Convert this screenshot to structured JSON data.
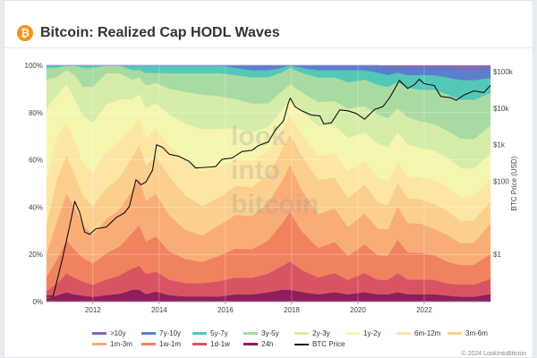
{
  "header": {
    "title": "Bitcoin: Realized Cap HODL Waves",
    "logo_glyph": "₿",
    "logo_color": "#f7931a"
  },
  "watermark": [
    "look",
    "into",
    "bitcoin"
  ],
  "footer": {
    "text": "© 2024 LookIntoBitcoin"
  },
  "chart_data": {
    "type": "area",
    "title": "Bitcoin: Realized Cap HODL Waves",
    "x_ticks": [
      "2012",
      "2014",
      "2016",
      "2018",
      "2020",
      "2022"
    ],
    "y_left_ticks": [
      "0%",
      "20%",
      "40%",
      "60%",
      "80%",
      "100%"
    ],
    "y_right_ticks": [
      "$1",
      "$100",
      "$1k",
      "$10k",
      "$100k"
    ],
    "ylabel_right": "BTC Price (USD)",
    "xlim": [
      2010.6,
      2024.0
    ],
    "ylim": [
      0,
      100
    ],
    "y_right_scale": "log",
    "y_right_range": [
      0.05,
      150000
    ],
    "grid": true,
    "legend_position": "bottom",
    "stack_order": [
      "24h",
      "1d-1w",
      "1w-1m",
      "1m-3m",
      "3m-6m",
      "6m-12m",
      "1y-2y",
      "2y-3y",
      "3y-5y",
      "5y-7y",
      "7y-10y",
      ">10y"
    ],
    "series": [
      {
        "name": ">10y",
        "color": "#8467b5",
        "kind": "band"
      },
      {
        "name": "7y-10y",
        "color": "#5b7fce",
        "kind": "band"
      },
      {
        "name": "5y-7y",
        "color": "#53c8b8",
        "kind": "band"
      },
      {
        "name": "3y-5y",
        "color": "#a8dba2",
        "kind": "band"
      },
      {
        "name": "2y-3y",
        "color": "#d6eca9",
        "kind": "band"
      },
      {
        "name": "1y-2y",
        "color": "#f4f6b0",
        "kind": "band"
      },
      {
        "name": "6m-12m",
        "color": "#fde6a4",
        "kind": "band"
      },
      {
        "name": "3m-6m",
        "color": "#fbcf8c",
        "kind": "band"
      },
      {
        "name": "1m-3m",
        "color": "#f8ad77",
        "kind": "band"
      },
      {
        "name": "1w-1m",
        "color": "#f1825f",
        "kind": "band"
      },
      {
        "name": "1d-1w",
        "color": "#d95463",
        "kind": "band"
      },
      {
        "name": "24h",
        "color": "#8e1f5c",
        "kind": "band"
      },
      {
        "name": "BTC Price",
        "color": "#111111",
        "kind": "line"
      }
    ],
    "bands_x": [
      2010.6,
      2010.9,
      2011.2,
      2011.45,
      2011.7,
      2012.0,
      2012.4,
      2012.8,
      2013.2,
      2013.4,
      2013.6,
      2013.9,
      2014.3,
      2014.8,
      2015.3,
      2015.8,
      2016.3,
      2016.8,
      2017.3,
      2017.7,
      2017.95,
      2018.3,
      2018.8,
      2019.3,
      2019.7,
      2020.2,
      2020.6,
      2020.9,
      2021.2,
      2021.5,
      2021.9,
      2022.3,
      2022.7,
      2023.1,
      2023.5,
      2024.0
    ],
    "band_values": {
      "24h": [
        1.5,
        2.5,
        4,
        3,
        2.5,
        2,
        2.5,
        3,
        5,
        5,
        3,
        4,
        2.5,
        2,
        2,
        2,
        3,
        3,
        4,
        5,
        5,
        4,
        3,
        4,
        3,
        4,
        3,
        3,
        4,
        3,
        3,
        3,
        2.5,
        2,
        2,
        3
      ],
      "1d-1w": [
        3,
        5,
        8,
        7,
        6,
        5,
        6,
        7,
        9,
        10,
        8,
        8,
        6,
        5,
        5,
        6,
        7,
        7,
        8,
        10,
        12,
        9,
        7,
        8,
        6,
        8,
        6,
        6,
        8,
        6,
        6,
        6,
        5,
        5,
        5,
        6
      ],
      "1w-1m": [
        6,
        10,
        14,
        12,
        10,
        9,
        10,
        11,
        15,
        17,
        13,
        14,
        11,
        9,
        8,
        10,
        12,
        12,
        14,
        18,
        21,
        16,
        12,
        13,
        10,
        12,
        10,
        10,
        14,
        11,
        11,
        10,
        9,
        8,
        8,
        10
      ],
      "1m-3m": [
        10,
        16,
        20,
        18,
        14,
        12,
        13,
        14,
        18,
        20,
        16,
        17,
        14,
        11,
        10,
        12,
        14,
        14,
        16,
        18,
        20,
        17,
        14,
        14,
        12,
        13,
        11,
        11,
        14,
        12,
        12,
        11,
        11,
        9,
        9,
        12
      ],
      "3m-6m": [
        12,
        18,
        16,
        14,
        12,
        12,
        12,
        12,
        14,
        14,
        14,
        15,
        15,
        13,
        11,
        11,
        12,
        12,
        12,
        13,
        13,
        14,
        14,
        13,
        12,
        12,
        11,
        10,
        10,
        10,
        10,
        10,
        10,
        9,
        9,
        9
      ],
      "6m-12m": [
        20,
        18,
        14,
        14,
        14,
        14,
        14,
        14,
        12,
        11,
        11,
        11,
        12,
        13,
        13,
        12,
        11,
        11,
        10,
        9,
        8,
        9,
        10,
        10,
        11,
        10,
        10,
        10,
        9,
        9,
        9,
        10,
        10,
        10,
        10,
        9
      ],
      "1y-2y": [
        30,
        18,
        16,
        18,
        20,
        21,
        18,
        16,
        12,
        10,
        12,
        10,
        12,
        14,
        16,
        15,
        13,
        12,
        10,
        8,
        7,
        9,
        12,
        12,
        14,
        12,
        14,
        14,
        12,
        13,
        12,
        12,
        12,
        12,
        11,
        10
      ],
      "2y-3y": [
        12,
        8,
        6,
        10,
        12,
        15,
        12,
        10,
        8,
        7,
        9,
        8,
        10,
        12,
        13,
        13,
        12,
        12,
        10,
        8,
        6,
        8,
        10,
        10,
        12,
        11,
        12,
        12,
        10,
        11,
        11,
        11,
        11,
        12,
        12,
        11
      ],
      "3y-5y": [
        5,
        4,
        2,
        4,
        8,
        8,
        3,
        3,
        4,
        3,
        5,
        4,
        6,
        7,
        8,
        9,
        10,
        11,
        11,
        8,
        7,
        8,
        10,
        10,
        11,
        11,
        12,
        13,
        11,
        12,
        13,
        14,
        15,
        16,
        16,
        13
      ],
      "5y-7y": [
        1,
        1,
        0,
        0,
        1,
        1,
        0,
        0,
        2,
        2,
        3,
        3,
        3,
        3,
        3,
        3,
        3,
        3,
        3,
        2,
        1,
        2,
        3,
        3,
        5,
        4,
        5,
        5,
        4,
        5,
        6,
        6,
        7,
        8,
        8,
        6
      ],
      "7y-10y": [
        0,
        0,
        0,
        0,
        0,
        0,
        0,
        0,
        0,
        0,
        0,
        0,
        0,
        0,
        0,
        0,
        1,
        2,
        2,
        1,
        0,
        1,
        2,
        2,
        2,
        2,
        3,
        3,
        2,
        3,
        3,
        3,
        4,
        4,
        4,
        4
      ],
      ">10y": [
        0,
        0,
        0,
        0,
        0,
        0,
        0,
        0,
        0,
        0,
        0,
        0,
        0,
        0,
        0,
        0,
        0,
        0,
        0,
        0,
        0,
        0,
        0,
        0,
        0,
        0,
        0,
        1,
        1,
        1,
        1,
        1,
        1,
        2,
        2,
        1
      ]
    },
    "price": {
      "x": [
        2010.6,
        2010.8,
        2010.95,
        2011.1,
        2011.3,
        2011.45,
        2011.6,
        2011.75,
        2011.9,
        2012.1,
        2012.4,
        2012.7,
        2012.95,
        2013.1,
        2013.3,
        2013.45,
        2013.6,
        2013.8,
        2013.92,
        2014.1,
        2014.3,
        2014.6,
        2014.9,
        2015.1,
        2015.4,
        2015.7,
        2015.9,
        2016.2,
        2016.5,
        2016.8,
        2017.0,
        2017.3,
        2017.5,
        2017.75,
        2017.9,
        2017.96,
        2018.1,
        2018.3,
        2018.6,
        2018.85,
        2018.97,
        2019.2,
        2019.45,
        2019.7,
        2019.95,
        2020.2,
        2020.5,
        2020.75,
        2020.95,
        2021.1,
        2021.25,
        2021.5,
        2021.7,
        2021.85,
        2022.0,
        2022.3,
        2022.5,
        2022.8,
        2022.97,
        2023.2,
        2023.5,
        2023.8,
        2024.0
      ],
      "y": [
        0.07,
        0.07,
        0.25,
        0.9,
        6,
        28,
        14,
        4,
        3.5,
        5,
        5.5,
        10,
        13.5,
        20,
        110,
        80,
        95,
        200,
        1000,
        850,
        550,
        480,
        350,
        230,
        240,
        250,
        400,
        430,
        650,
        700,
        950,
        1200,
        2500,
        4500,
        14000,
        19000,
        11000,
        8500,
        6500,
        6200,
        3700,
        4000,
        9000,
        8500,
        7200,
        5000,
        9200,
        11000,
        19000,
        33000,
        58000,
        35000,
        44000,
        62000,
        47000,
        42000,
        21000,
        19500,
        16500,
        23000,
        30000,
        27000,
        42000
      ]
    }
  }
}
